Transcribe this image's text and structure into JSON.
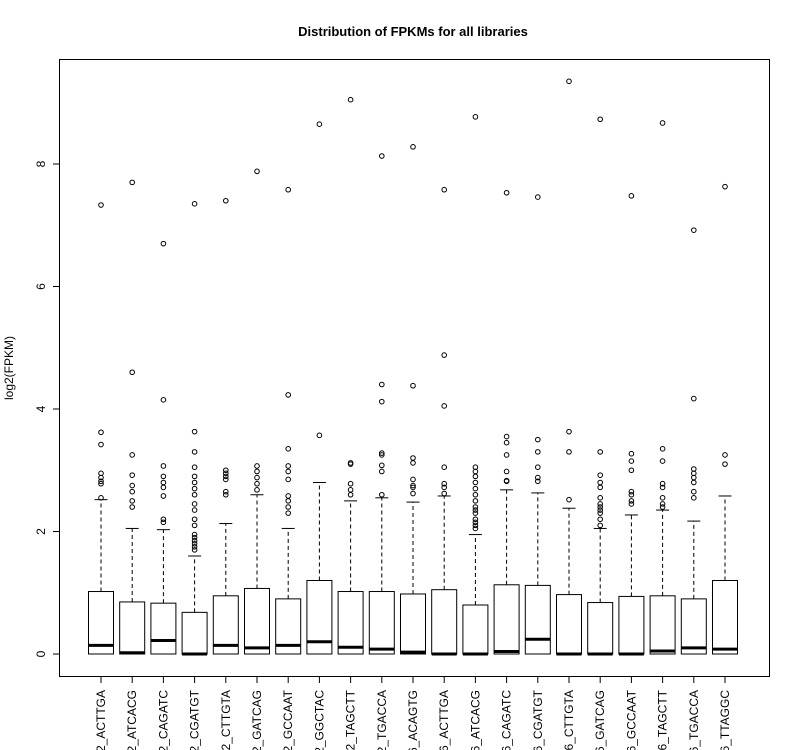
{
  "chart_data": {
    "type": "box",
    "title": "Distribution of FPKMs for all libraries",
    "xlabel": "",
    "ylabel": "log2(FPKM)",
    "ylim": [
      -0.35,
      9.75
    ],
    "yticks": [
      "0",
      "2",
      "4",
      "6",
      "8"
    ],
    "categories": [
      "2_ACTTGA",
      "2_ATCACG",
      "2_CAGATC",
      "2_CGATGT",
      "2_CTTGTA",
      "2_GATCAG",
      "2_GCCAAT",
      "2_GGCTAC",
      "2_TAGCTT",
      "2_TGACCA",
      "6_ACAGTG",
      "6_ACTTGA",
      "6_ATCACG",
      "6_CAGATC",
      "6_CGATGT",
      "6_CTTGTA",
      "6_GATCAG",
      "6_GCCAAT",
      "6_TAGCTT",
      "6_TGACCA",
      "6_TTAGGC"
    ],
    "boxes": [
      {
        "q1": 0,
        "median": 0.14,
        "q3": 1.02,
        "whisker_low": 0,
        "whisker_high": 2.52,
        "outliers": [
          7.33,
          3.62,
          3.42,
          2.95,
          2.88,
          2.82,
          2.78,
          2.55
        ]
      },
      {
        "q1": 0,
        "median": 0.02,
        "q3": 0.85,
        "whisker_low": 0,
        "whisker_high": 2.05,
        "outliers": [
          7.7,
          4.6,
          3.25,
          2.92,
          2.75,
          2.65,
          2.5,
          2.4
        ]
      },
      {
        "q1": 0,
        "median": 0.22,
        "q3": 0.83,
        "whisker_low": 0,
        "whisker_high": 2.03,
        "outliers": [
          6.7,
          4.15,
          3.07,
          2.9,
          2.8,
          2.72,
          2.58,
          2.2,
          2.15
        ]
      },
      {
        "q1": 0,
        "median": 0.0,
        "q3": 0.68,
        "whisker_low": 0,
        "whisker_high": 1.6,
        "outliers": [
          7.35,
          3.63,
          3.3,
          3.05,
          2.9,
          2.8,
          2.7,
          2.6,
          2.45,
          2.35,
          2.2,
          2.1,
          1.95,
          1.9,
          1.85,
          1.8,
          1.75,
          1.7
        ]
      },
      {
        "q1": 0,
        "median": 0.14,
        "q3": 0.95,
        "whisker_low": 0,
        "whisker_high": 2.13,
        "outliers": [
          7.4,
          3.0,
          2.95,
          2.9,
          2.85,
          2.65,
          2.6
        ]
      },
      {
        "q1": 0,
        "median": 0.1,
        "q3": 1.07,
        "whisker_low": 0,
        "whisker_high": 2.6,
        "outliers": [
          7.88,
          3.07,
          2.98,
          2.88,
          2.78,
          2.68
        ]
      },
      {
        "q1": 0,
        "median": 0.14,
        "q3": 0.9,
        "whisker_low": 0,
        "whisker_high": 2.05,
        "outliers": [
          7.58,
          4.23,
          3.35,
          3.07,
          2.98,
          2.85,
          2.58,
          2.5,
          2.4,
          2.3
        ]
      },
      {
        "q1": 0,
        "median": 0.2,
        "q3": 1.2,
        "whisker_low": 0,
        "whisker_high": 2.8,
        "outliers": [
          8.65,
          3.57
        ]
      },
      {
        "q1": 0,
        "median": 0.11,
        "q3": 1.02,
        "whisker_low": 0,
        "whisker_high": 2.5,
        "outliers": [
          9.05,
          3.12,
          3.1,
          2.78,
          2.68,
          2.6
        ]
      },
      {
        "q1": 0,
        "median": 0.08,
        "q3": 1.02,
        "whisker_low": 0,
        "whisker_high": 2.55,
        "outliers": [
          8.13,
          4.4,
          4.12,
          3.28,
          3.25,
          3.08,
          2.98,
          2.6
        ]
      },
      {
        "q1": 0,
        "median": 0.03,
        "q3": 0.98,
        "whisker_low": 0,
        "whisker_high": 2.48,
        "outliers": [
          8.28,
          4.38,
          3.2,
          3.12,
          2.85,
          2.75,
          2.72,
          2.62
        ]
      },
      {
        "q1": 0,
        "median": 0.0,
        "q3": 1.05,
        "whisker_low": 0,
        "whisker_high": 2.58,
        "outliers": [
          7.58,
          4.88,
          4.05,
          3.05,
          2.78,
          2.72,
          2.62
        ]
      },
      {
        "q1": 0,
        "median": 0.0,
        "q3": 0.8,
        "whisker_low": 0,
        "whisker_high": 1.95,
        "outliers": [
          8.77,
          3.05,
          2.98,
          2.9,
          2.8,
          2.7,
          2.6,
          2.5,
          2.4,
          2.35,
          2.3,
          2.2,
          2.15,
          2.1,
          2.05
        ]
      },
      {
        "q1": 0,
        "median": 0.04,
        "q3": 1.13,
        "whisker_low": 0,
        "whisker_high": 2.68,
        "outliers": [
          7.53,
          3.55,
          3.45,
          3.25,
          2.98,
          2.83,
          2.82
        ]
      },
      {
        "q1": 0,
        "median": 0.24,
        "q3": 1.12,
        "whisker_low": 0,
        "whisker_high": 2.63,
        "outliers": [
          7.46,
          3.5,
          3.3,
          3.05,
          2.88,
          2.82
        ]
      },
      {
        "q1": 0,
        "median": 0.0,
        "q3": 0.97,
        "whisker_low": 0,
        "whisker_high": 2.38,
        "outliers": [
          9.35,
          3.63,
          3.3,
          2.52
        ]
      },
      {
        "q1": 0,
        "median": 0.0,
        "q3": 0.84,
        "whisker_low": 0,
        "whisker_high": 2.05,
        "outliers": [
          8.73,
          3.3,
          2.92,
          2.8,
          2.72,
          2.55,
          2.45,
          2.4,
          2.35,
          2.3,
          2.2,
          2.1
        ]
      },
      {
        "q1": 0,
        "median": 0.0,
        "q3": 0.94,
        "whisker_low": 0,
        "whisker_high": 2.27,
        "outliers": [
          7.48,
          3.27,
          3.15,
          3.0,
          2.65,
          2.6,
          2.5,
          2.45
        ]
      },
      {
        "q1": 0,
        "median": 0.05,
        "q3": 0.95,
        "whisker_low": 0,
        "whisker_high": 2.35,
        "outliers": [
          8.67,
          3.35,
          3.15,
          2.78,
          2.72,
          2.55,
          2.45,
          2.4
        ]
      },
      {
        "q1": 0,
        "median": 0.1,
        "q3": 0.9,
        "whisker_low": 0,
        "whisker_high": 2.17,
        "outliers": [
          6.92,
          4.17,
          3.02,
          2.95,
          2.88,
          2.8,
          2.65,
          2.55
        ]
      },
      {
        "q1": 0,
        "median": 0.08,
        "q3": 1.2,
        "whisker_low": 0,
        "whisker_high": 2.58,
        "outliers": [
          7.63,
          3.25,
          3.1
        ]
      }
    ],
    "colors": {
      "box_fill": "#ffffff",
      "stroke": "#000000",
      "background": "#ffffff"
    },
    "grid": false,
    "legend": "none"
  }
}
